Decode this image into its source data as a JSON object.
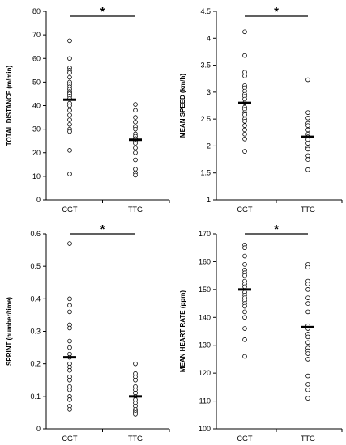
{
  "chart_data": [
    {
      "type": "scatter",
      "ylabel": "TOTAL DISTANCE  (m/min)",
      "ylim": [
        0,
        80
      ],
      "yticks": [
        0,
        10,
        20,
        30,
        40,
        50,
        60,
        70,
        80
      ],
      "categories": [
        "CGT",
        "TTG"
      ],
      "series": [
        {
          "values": [
            67.5,
            60,
            56,
            55,
            54,
            52,
            50,
            49,
            48,
            47,
            46,
            45.5,
            45,
            44,
            43,
            41,
            40,
            38,
            36,
            34,
            32,
            30,
            29,
            21,
            11
          ]
        },
        {
          "values": [
            40.5,
            38,
            35,
            33,
            31,
            30,
            28,
            27,
            26,
            25,
            24,
            22,
            20,
            17,
            13,
            11.5,
            10.5
          ]
        }
      ],
      "means": [
        42.5,
        25.5
      ],
      "significance": "*"
    },
    {
      "type": "scatter",
      "ylabel": "MEAN  SPEED  (km/h)",
      "ylim": [
        1,
        4.5
      ],
      "yticks": [
        1,
        1.5,
        2,
        2.5,
        3,
        3.5,
        4,
        4.5
      ],
      "categories": [
        "CGT",
        "TTG"
      ],
      "series": [
        {
          "values": [
            4.12,
            3.68,
            3.37,
            3.3,
            3.12,
            3.08,
            3.02,
            2.96,
            2.92,
            2.87,
            2.8,
            2.72,
            2.68,
            2.62,
            2.58,
            2.5,
            2.46,
            2.38,
            2.3,
            2.22,
            2.13,
            1.9
          ]
        },
        {
          "values": [
            3.23,
            2.62,
            2.52,
            2.42,
            2.38,
            2.3,
            2.22,
            2.17,
            2.12,
            2.05,
            1.97,
            1.94,
            1.82,
            1.75,
            1.56
          ]
        }
      ],
      "means": [
        2.8,
        2.17
      ],
      "significance": "*"
    },
    {
      "type": "scatter",
      "ylabel": "SPRINT  (number/time)",
      "ylim": [
        0,
        0.6
      ],
      "yticks": [
        0,
        0.1,
        0.2,
        0.3,
        0.4,
        0.5,
        0.6
      ],
      "categories": [
        "CGT",
        "TTG"
      ],
      "series": [
        {
          "values": [
            0.57,
            0.4,
            0.38,
            0.36,
            0.32,
            0.31,
            0.27,
            0.25,
            0.23,
            0.22,
            0.2,
            0.19,
            0.18,
            0.16,
            0.15,
            0.13,
            0.12,
            0.1,
            0.09,
            0.07,
            0.06
          ]
        },
        {
          "values": [
            0.2,
            0.17,
            0.16,
            0.15,
            0.13,
            0.12,
            0.11,
            0.1,
            0.09,
            0.08,
            0.07,
            0.06,
            0.055,
            0.05,
            0.045
          ]
        }
      ],
      "means": [
        0.22,
        0.1
      ],
      "significance": "*"
    },
    {
      "type": "scatter",
      "ylabel": "MEAN  HEART  RATE  (ppm)",
      "ylim": [
        100,
        170
      ],
      "yticks": [
        100,
        110,
        120,
        130,
        140,
        150,
        160,
        170
      ],
      "categories": [
        "CGT",
        "TTG"
      ],
      "series": [
        {
          "values": [
            166,
            165,
            162,
            159,
            157,
            156,
            155,
            153,
            152,
            151,
            149,
            148,
            147,
            146,
            145,
            144,
            142,
            140,
            136,
            132,
            126
          ]
        },
        {
          "values": [
            159,
            158,
            153,
            152,
            150,
            147,
            145,
            142,
            137,
            136,
            134,
            133,
            131,
            129,
            128,
            127,
            125,
            119,
            116,
            114,
            111
          ]
        }
      ],
      "means": [
        150,
        136.5
      ],
      "significance": "*"
    }
  ]
}
